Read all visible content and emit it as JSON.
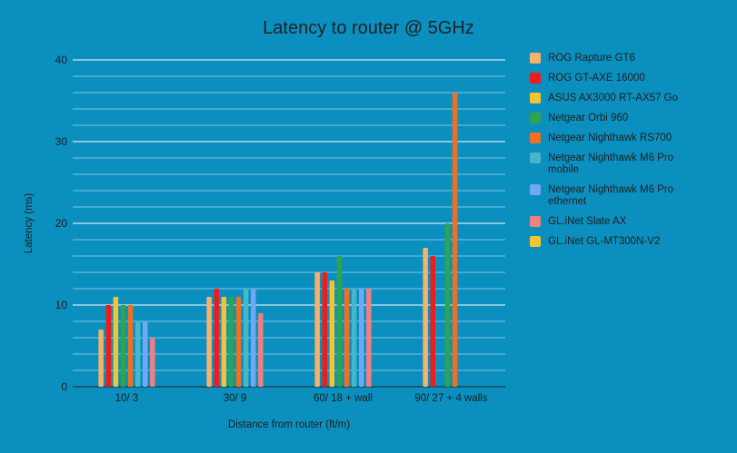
{
  "chart_data": {
    "type": "bar",
    "title": "Latency to router @ 5GHz",
    "xlabel": "Distance from router (ft/m)",
    "ylabel": "Latency (ms)",
    "ylim": [
      0,
      40
    ],
    "yticks": [
      "0",
      "10",
      "20",
      "30",
      "40"
    ],
    "grid": true,
    "legend_position": "right",
    "categories": [
      "10/ 3",
      "30/ 9",
      "60/ 18 + wall",
      "90/ 27 + 4 walls"
    ],
    "series": [
      {
        "name": "ROG Rapture GT6",
        "color": "#f6b26b",
        "values": [
          7,
          11,
          14,
          17
        ]
      },
      {
        "name": "ROG GT-AXE 16000",
        "color": "#ee1c1c",
        "values": [
          10,
          12,
          14,
          16
        ]
      },
      {
        "name": "ASUS AX3000 RT-AX57 Go",
        "color": "#f4c430",
        "values": [
          11,
          11,
          13,
          null
        ]
      },
      {
        "name": "Netgear Orbi 960",
        "color": "#2ea44f",
        "values": [
          10,
          11,
          16,
          20
        ]
      },
      {
        "name": "Netgear Nighthawk RS700",
        "color": "#f07020",
        "values": [
          10,
          11,
          12,
          36
        ]
      },
      {
        "name": "Netgear Nighthawk M6 Pro mobile",
        "color": "#46b7c9",
        "values": [
          8,
          12,
          12,
          null
        ]
      },
      {
        "name": "Netgear Nighthawk M6 Pro ethernet",
        "color": "#6fa8f5",
        "values": [
          8,
          12,
          12,
          null
        ]
      },
      {
        "name": "GL.iNet Slate AX",
        "color": "#f08080",
        "values": [
          6,
          9,
          12,
          null
        ]
      },
      {
        "name": "GL.iNet GL-MT300N-V2",
        "color": "#f7c431",
        "values": [
          null,
          null,
          null,
          null
        ]
      }
    ]
  }
}
